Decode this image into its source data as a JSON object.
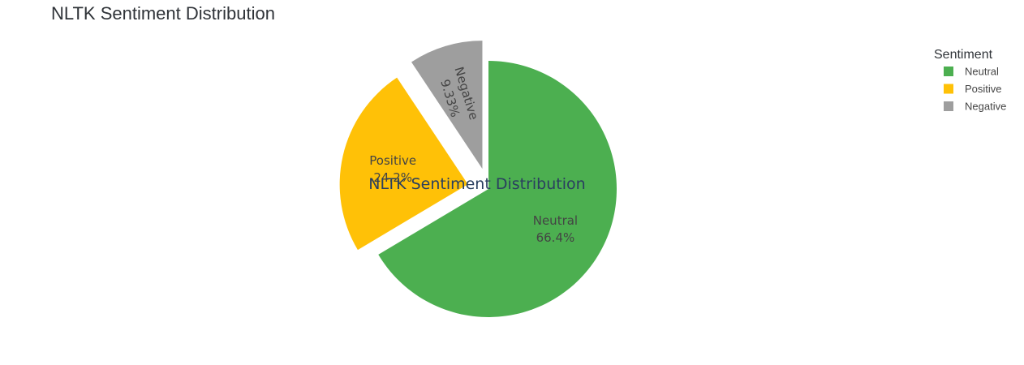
{
  "chart_data": {
    "type": "pie",
    "title": "NLTK Sentiment Distribution",
    "center_annotation": "NLTK Sentiment Distribution",
    "legend_title": "Sentiment",
    "legend_placement": "top-right",
    "slices": [
      {
        "label": "Neutral",
        "value": 66.4,
        "text": "66.4%",
        "color": "#4caf50",
        "pulled": false
      },
      {
        "label": "Positive",
        "value": 24.2,
        "text": "24.2%",
        "color": "#ffc107",
        "pulled": true
      },
      {
        "label": "Negative",
        "value": 9.33,
        "text": "9.33%",
        "color": "#9e9e9e",
        "pulled": true
      }
    ]
  }
}
